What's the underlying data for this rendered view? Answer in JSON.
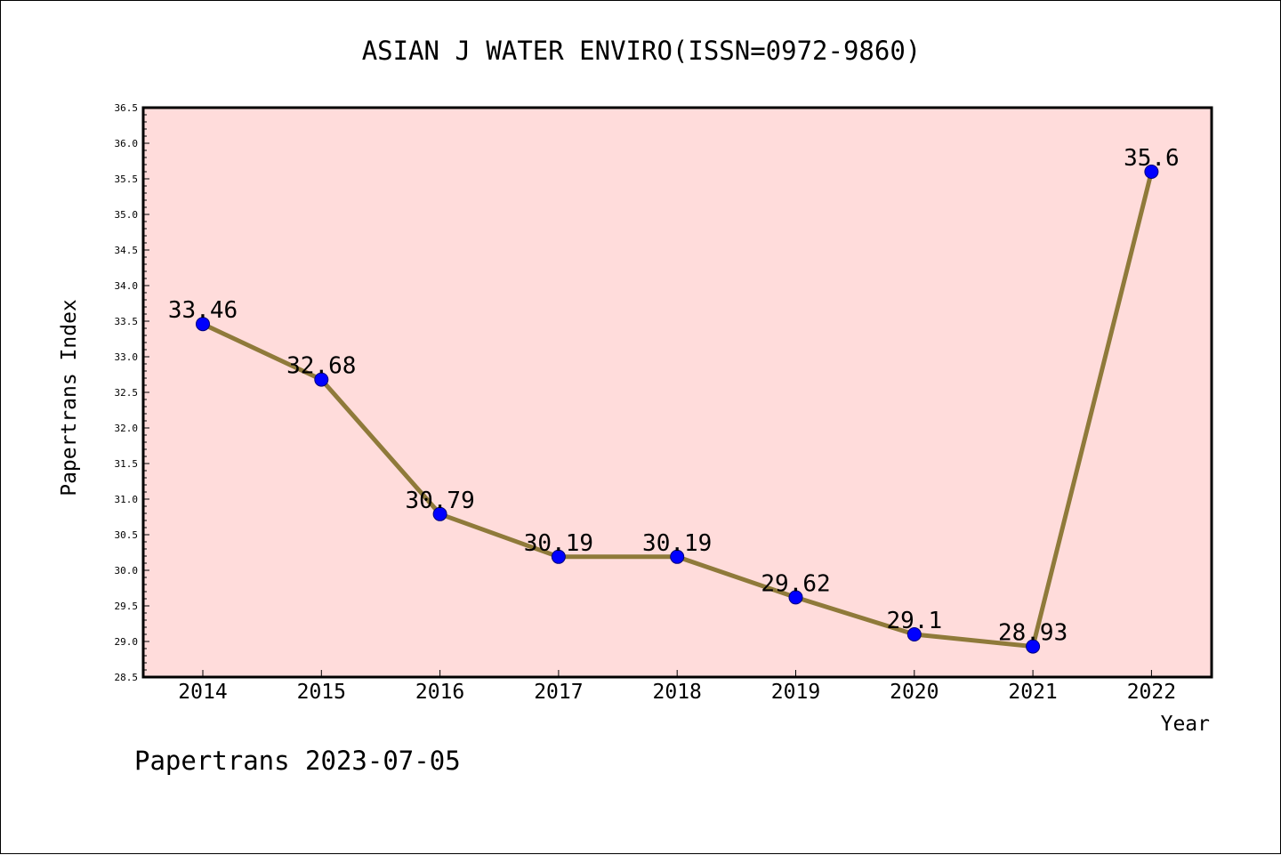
{
  "chart_data": {
    "type": "line",
    "title": "ASIAN J WATER ENVIRO(ISSN=0972-9860)",
    "xlabel": "Year",
    "ylabel": "Papertrans Index",
    "categories": [
      "2014",
      "2015",
      "2016",
      "2017",
      "2018",
      "2019",
      "2020",
      "2021",
      "2022"
    ],
    "values": [
      33.46,
      32.68,
      30.79,
      30.19,
      30.19,
      29.62,
      29.1,
      28.93,
      35.6
    ],
    "data_labels": [
      "33.46",
      "32.68",
      "30.79",
      "30.19",
      "30.19",
      "29.62",
      "29.1",
      "28.93",
      "35.6"
    ],
    "ylim": [
      28.5,
      36.5
    ],
    "yticks": [
      "28.5",
      "29.0",
      "29.5",
      "30.0",
      "30.5",
      "31.0",
      "31.5",
      "32.0",
      "32.5",
      "33.0",
      "33.5",
      "34.0",
      "34.5",
      "35.0",
      "35.5",
      "36.0",
      "36.5"
    ],
    "grid": false,
    "colors": {
      "plot_background": "#ffdcdb",
      "line": "#8f7a3a",
      "marker": "#0000ff"
    }
  },
  "footer": "Papertrans 2023-07-05"
}
